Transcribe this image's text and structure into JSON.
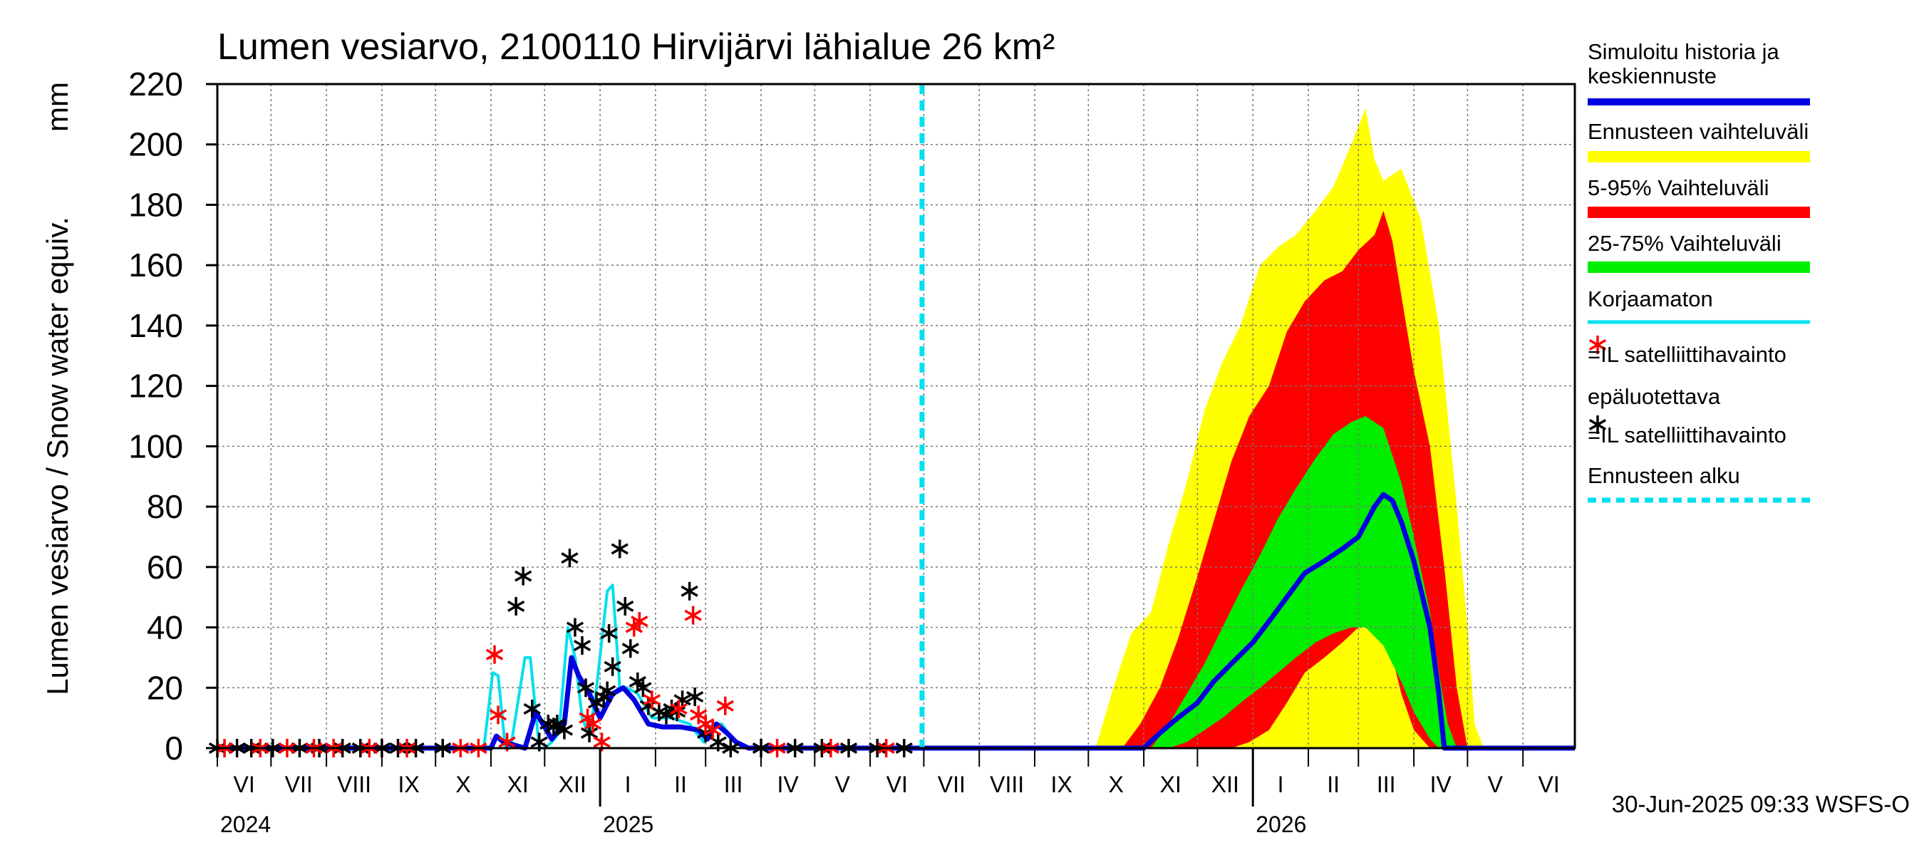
{
  "chart_data": {
    "type": "area",
    "title": "Lumen vesiarvo, 2100110 Hirvijärvi lähialue 26 km²",
    "ylabel": "Lumen vesiarvo / Snow water equiv.",
    "yunit": "mm",
    "ylim": [
      0,
      220
    ],
    "yticks": [
      0,
      20,
      40,
      60,
      80,
      100,
      120,
      140,
      160,
      180,
      200,
      220
    ],
    "xlim": [
      "2024-06-01",
      "2026-06-30"
    ],
    "grid": true,
    "legend_position": "right",
    "forecast_start": "2025-06-30",
    "month_ticks": [
      "VI",
      "VII",
      "VIII",
      "IX",
      "X",
      "XI",
      "XII",
      "I",
      "II",
      "III",
      "IV",
      "V",
      "VI",
      "VII",
      "VIII",
      "IX",
      "X",
      "XI",
      "XII",
      "I",
      "II",
      "III",
      "IV",
      "V",
      "VI"
    ],
    "year_labels": [
      {
        "label": "2024",
        "date": "2024-06-01"
      },
      {
        "label": "2025",
        "date": "2025-01-01"
      },
      {
        "label": "2026",
        "date": "2026-01-01"
      }
    ],
    "legend": [
      {
        "label": "Simuloitu historia ja keskiennuste",
        "color": "#0000e0",
        "kind": "line"
      },
      {
        "label": "Ennusteen vaihteluväli",
        "color": "#ffff00",
        "kind": "band"
      },
      {
        "label": "5-95% Vaihteluväli",
        "color": "#ff0000",
        "kind": "band"
      },
      {
        "label": "25-75% Vaihteluväli",
        "color": "#00ee00",
        "kind": "band"
      },
      {
        "label": "Korjaamaton",
        "color": "#00e0f0",
        "kind": "line"
      },
      {
        "label": "=IL satelliittihavainto epäluotettava",
        "color": "#ff0000",
        "kind": "star"
      },
      {
        "label": "=IL satelliittihavainto",
        "color": "#000000",
        "kind": "star"
      },
      {
        "label": "Ennusteen alku",
        "color": "#00e0f0",
        "kind": "dashed"
      }
    ],
    "series": [
      {
        "name": "Ennusteen vaihteluväli",
        "color": "#ffff00",
        "kind": "band",
        "x": [
          "2025-10-05",
          "2025-10-15",
          "2025-10-25",
          "2025-11-05",
          "2025-11-15",
          "2025-11-25",
          "2025-12-05",
          "2025-12-15",
          "2025-12-25",
          "2026-01-05",
          "2026-01-15",
          "2026-01-25",
          "2026-02-05",
          "2026-02-15",
          "2026-02-25",
          "2026-03-05",
          "2026-03-10",
          "2026-03-15",
          "2026-03-20",
          "2026-03-25",
          "2026-04-05",
          "2026-04-15",
          "2026-04-20",
          "2026-04-25",
          "2026-05-01",
          "2026-05-05",
          "2026-05-10"
        ],
        "upper": [
          0,
          20,
          38,
          45,
          68,
          88,
          112,
          128,
          140,
          160,
          166,
          170,
          178,
          186,
          200,
          212,
          195,
          188,
          190,
          192,
          175,
          140,
          110,
          80,
          40,
          8,
          0
        ],
        "lower": [
          0,
          0,
          0,
          0,
          0,
          0,
          0,
          0,
          0,
          0,
          0,
          0,
          0,
          0,
          0,
          0,
          0,
          0,
          0,
          0,
          0,
          0,
          0,
          0,
          0,
          0,
          0
        ]
      },
      {
        "name": "5-95% Vaihteluväli",
        "color": "#ff0000",
        "kind": "band",
        "x": [
          "2025-10-20",
          "2025-10-30",
          "2025-11-10",
          "2025-11-20",
          "2025-11-30",
          "2025-12-10",
          "2025-12-20",
          "2025-12-30",
          "2026-01-10",
          "2026-01-20",
          "2026-01-30",
          "2026-02-10",
          "2026-02-20",
          "2026-03-01",
          "2026-03-10",
          "2026-03-15",
          "2026-03-20",
          "2026-03-25",
          "2026-04-01",
          "2026-04-10",
          "2026-04-18",
          "2026-04-25",
          "2026-05-01"
        ],
        "upper": [
          0,
          8,
          20,
          36,
          55,
          75,
          95,
          110,
          120,
          138,
          148,
          155,
          158,
          165,
          170,
          178,
          168,
          150,
          125,
          100,
          60,
          20,
          0
        ],
        "lower": [
          0,
          0,
          0,
          0,
          0,
          0,
          0,
          2,
          6,
          15,
          25,
          30,
          35,
          40,
          41,
          38,
          30,
          18,
          6,
          0,
          0,
          0,
          0
        ]
      },
      {
        "name": "25-75% Vaihteluväli",
        "color": "#00ee00",
        "kind": "band",
        "x": [
          "2025-11-05",
          "2025-11-15",
          "2025-11-25",
          "2025-12-05",
          "2025-12-15",
          "2025-12-25",
          "2026-01-05",
          "2026-01-15",
          "2026-01-25",
          "2026-02-05",
          "2026-02-15",
          "2026-02-25",
          "2026-03-05",
          "2026-03-15",
          "2026-03-25",
          "2026-04-01",
          "2026-04-10",
          "2026-04-15",
          "2026-04-20",
          "2026-04-25"
        ],
        "upper": [
          0,
          8,
          18,
          28,
          40,
          52,
          64,
          76,
          86,
          96,
          104,
          108,
          110,
          106,
          88,
          70,
          45,
          25,
          8,
          0
        ],
        "lower": [
          0,
          0,
          2,
          6,
          10,
          15,
          20,
          25,
          30,
          35,
          38,
          40,
          40,
          34,
          22,
          12,
          3,
          0,
          0,
          0
        ]
      },
      {
        "name": "Korjaamaton",
        "color": "#00e0f0",
        "kind": "line",
        "x": [
          "2024-10-28",
          "2024-11-02",
          "2024-11-05",
          "2024-11-09",
          "2024-11-12",
          "2024-11-20",
          "2024-11-23",
          "2024-11-28",
          "2024-12-01",
          "2024-12-05",
          "2024-12-09",
          "2024-12-14",
          "2024-12-18",
          "2024-12-22",
          "2024-12-26",
          "2024-12-30",
          "2025-01-05",
          "2025-01-08",
          "2025-01-12",
          "2025-01-16",
          "2025-01-22",
          "2025-01-30",
          "2025-02-10",
          "2025-02-20",
          "2025-02-28",
          "2025-03-05",
          "2025-03-10",
          "2025-03-15",
          "2025-03-20",
          "2025-03-25",
          "2025-04-01"
        ],
        "y": [
          0,
          25,
          24,
          0,
          0,
          30,
          30,
          0,
          0,
          2,
          5,
          40,
          30,
          10,
          4,
          20,
          52,
          54,
          20,
          20,
          18,
          10,
          10,
          8,
          2,
          8,
          8,
          4,
          1,
          0,
          0
        ]
      },
      {
        "name": "Simuloitu historia ja keskiennuste",
        "color": "#0000e0",
        "kind": "line",
        "x": [
          "2024-06-01",
          "2024-11-01",
          "2024-11-04",
          "2024-11-08",
          "2024-11-20",
          "2024-11-26",
          "2024-12-05",
          "2024-12-12",
          "2024-12-16",
          "2024-12-20",
          "2024-12-26",
          "2025-01-01",
          "2025-01-08",
          "2025-01-14",
          "2025-01-20",
          "2025-01-28",
          "2025-02-05",
          "2025-02-15",
          "2025-02-25",
          "2025-03-02",
          "2025-03-07",
          "2025-03-13",
          "2025-03-18",
          "2025-03-25",
          "2025-04-01",
          "2025-06-30",
          "2025-11-01",
          "2025-11-10",
          "2025-11-20",
          "2025-12-01",
          "2025-12-10",
          "2025-12-20",
          "2026-01-01",
          "2026-01-10",
          "2026-01-20",
          "2026-01-30",
          "2026-02-10",
          "2026-02-20",
          "2026-03-01",
          "2026-03-10",
          "2026-03-15",
          "2026-03-20",
          "2026-03-25",
          "2026-04-01",
          "2026-04-10",
          "2026-04-15",
          "2026-04-18",
          "2026-06-30"
        ],
        "y": [
          0,
          0,
          4,
          2,
          0,
          12,
          3,
          8,
          30,
          24,
          18,
          10,
          18,
          20,
          16,
          8,
          7,
          7,
          6,
          3,
          8,
          5,
          2,
          0,
          0,
          0,
          0,
          5,
          10,
          15,
          22,
          28,
          35,
          42,
          50,
          58,
          62,
          66,
          70,
          80,
          84,
          82,
          75,
          62,
          40,
          18,
          0,
          0
        ]
      }
    ],
    "scatter_reliable": {
      "name": "=IL satelliittihavainto",
      "color": "#000000",
      "x": [
        "2024-06-01",
        "2024-06-12",
        "2024-06-20",
        "2024-07-02",
        "2024-07-17",
        "2024-07-28",
        "2024-08-10",
        "2024-08-20",
        "2024-09-01",
        "2024-09-10",
        "2024-09-20",
        "2024-10-05",
        "2024-11-15",
        "2024-11-19",
        "2024-11-24",
        "2024-11-28",
        "2024-12-03",
        "2024-12-06",
        "2024-12-08",
        "2024-12-12",
        "2024-12-15",
        "2024-12-18",
        "2024-12-22",
        "2024-12-24",
        "2024-12-26",
        "2024-12-30",
        "2025-01-03",
        "2025-01-05",
        "2025-01-06",
        "2025-01-08",
        "2025-01-12",
        "2025-01-15",
        "2025-01-18",
        "2025-01-22",
        "2025-01-25",
        "2025-01-28",
        "2025-02-03",
        "2025-02-07",
        "2025-02-10",
        "2025-02-13",
        "2025-02-16",
        "2025-02-20",
        "2025-02-23",
        "2025-03-01",
        "2025-03-08",
        "2025-03-15",
        "2025-04-01",
        "2025-04-20",
        "2025-05-05",
        "2025-05-20",
        "2025-06-05",
        "2025-06-20"
      ],
      "y": [
        0,
        0,
        0,
        0,
        0,
        0,
        0,
        0,
        0,
        0,
        0,
        0,
        47,
        57,
        13,
        2,
        8,
        7,
        8,
        6,
        63,
        40,
        34,
        20,
        5,
        15,
        17,
        19,
        38,
        27,
        66,
        47,
        33,
        22,
        20,
        14,
        12,
        11,
        13,
        12,
        16,
        52,
        17,
        5,
        2,
        0,
        0,
        0,
        0,
        0,
        0,
        0
      ]
    },
    "scatter_unreliable": {
      "name": "=IL satelliittihavainto epäluotettava",
      "color": "#ff0000",
      "x": [
        "2024-06-05",
        "2024-06-25",
        "2024-07-10",
        "2024-07-25",
        "2024-08-05",
        "2024-08-25",
        "2024-09-15",
        "2024-10-15",
        "2024-10-25",
        "2024-11-03",
        "2024-11-05",
        "2024-11-10",
        "2024-12-25",
        "2024-12-28",
        "2025-01-02",
        "2025-01-20",
        "2025-01-23",
        "2025-01-30",
        "2025-02-14",
        "2025-02-22",
        "2025-02-25",
        "2025-03-01",
        "2025-03-05",
        "2025-03-12",
        "2025-04-10",
        "2025-05-10",
        "2025-06-10"
      ],
      "y": [
        0,
        0,
        0,
        0,
        0,
        0,
        0,
        0,
        0,
        31,
        11,
        2,
        10,
        8,
        2,
        40,
        42,
        16,
        13,
        44,
        11,
        8,
        6,
        14,
        0,
        0,
        0
      ]
    }
  },
  "footer": {
    "timestamp": "30-Jun-2025 09:33 WSFS-O"
  }
}
